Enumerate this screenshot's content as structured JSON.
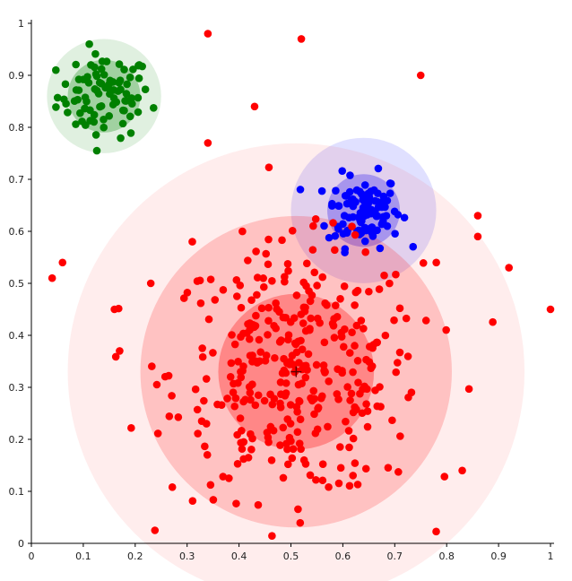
{
  "chart_data": {
    "type": "scatter",
    "title": "",
    "xlabel": "",
    "ylabel": "",
    "xlim": [
      0,
      1
    ],
    "ylim": [
      0,
      1
    ],
    "grid": false,
    "legend": "none",
    "x_ticks": [
      "0",
      "0.1",
      "0.2",
      "0.3",
      "0.4",
      "0.5",
      "0.6",
      "0.7",
      "0.8",
      "0.9",
      "1"
    ],
    "y_ticks": [
      "0",
      "0.1",
      "0.2",
      "0.3",
      "0.4",
      "0.5",
      "0.6",
      "0.7",
      "0.8",
      "0.9",
      "1"
    ],
    "x_tick_values": [
      0,
      0.1,
      0.2,
      0.3,
      0.4,
      0.5,
      0.6,
      0.7,
      0.8,
      0.9,
      1
    ],
    "y_tick_values": [
      0,
      0.1,
      0.2,
      0.3,
      0.4,
      0.5,
      0.6,
      0.7,
      0.8,
      0.9,
      1
    ],
    "clusters": [
      {
        "color": "#008000",
        "center": [
          0.14,
          0.86
        ],
        "spread": [
          0.045,
          0.04
        ],
        "n_points": 90,
        "halo_radii": [
          0.07,
          0.11
        ]
      },
      {
        "color": "#0000ff",
        "center": [
          0.64,
          0.64
        ],
        "spread": [
          0.035,
          0.035
        ],
        "n_points": 110,
        "halo_radii": [
          0.07,
          0.14
        ]
      },
      {
        "color": "#ff0000",
        "center": [
          0.51,
          0.33
        ],
        "spread": [
          0.12,
          0.12
        ],
        "n_points": 360,
        "halo_radii": [
          0.15,
          0.3,
          0.44
        ]
      }
    ],
    "center_marker": [
      0.51,
      0.33
    ],
    "outliers": [
      {
        "x": 0.34,
        "y": 0.98
      },
      {
        "x": 0.52,
        "y": 0.97
      },
      {
        "x": 0.75,
        "y": 0.9
      },
      {
        "x": 0.43,
        "y": 0.84
      },
      {
        "x": 0.34,
        "y": 0.77
      },
      {
        "x": 0.86,
        "y": 0.63
      },
      {
        "x": 0.86,
        "y": 0.59
      },
      {
        "x": 0.92,
        "y": 0.53
      },
      {
        "x": 0.78,
        "y": 0.54
      },
      {
        "x": 0.06,
        "y": 0.54
      },
      {
        "x": 0.04,
        "y": 0.51
      },
      {
        "x": 0.16,
        "y": 0.45
      },
      {
        "x": 0.17,
        "y": 0.37
      },
      {
        "x": 1.0,
        "y": 0.45
      },
      {
        "x": 0.83,
        "y": 0.14
      },
      {
        "x": 0.31,
        "y": 0.58
      },
      {
        "x": 0.23,
        "y": 0.5
      }
    ],
    "colors": {
      "green": "#008000",
      "blue": "#0000ff",
      "red": "#ff0000",
      "axis": "#000000"
    }
  }
}
